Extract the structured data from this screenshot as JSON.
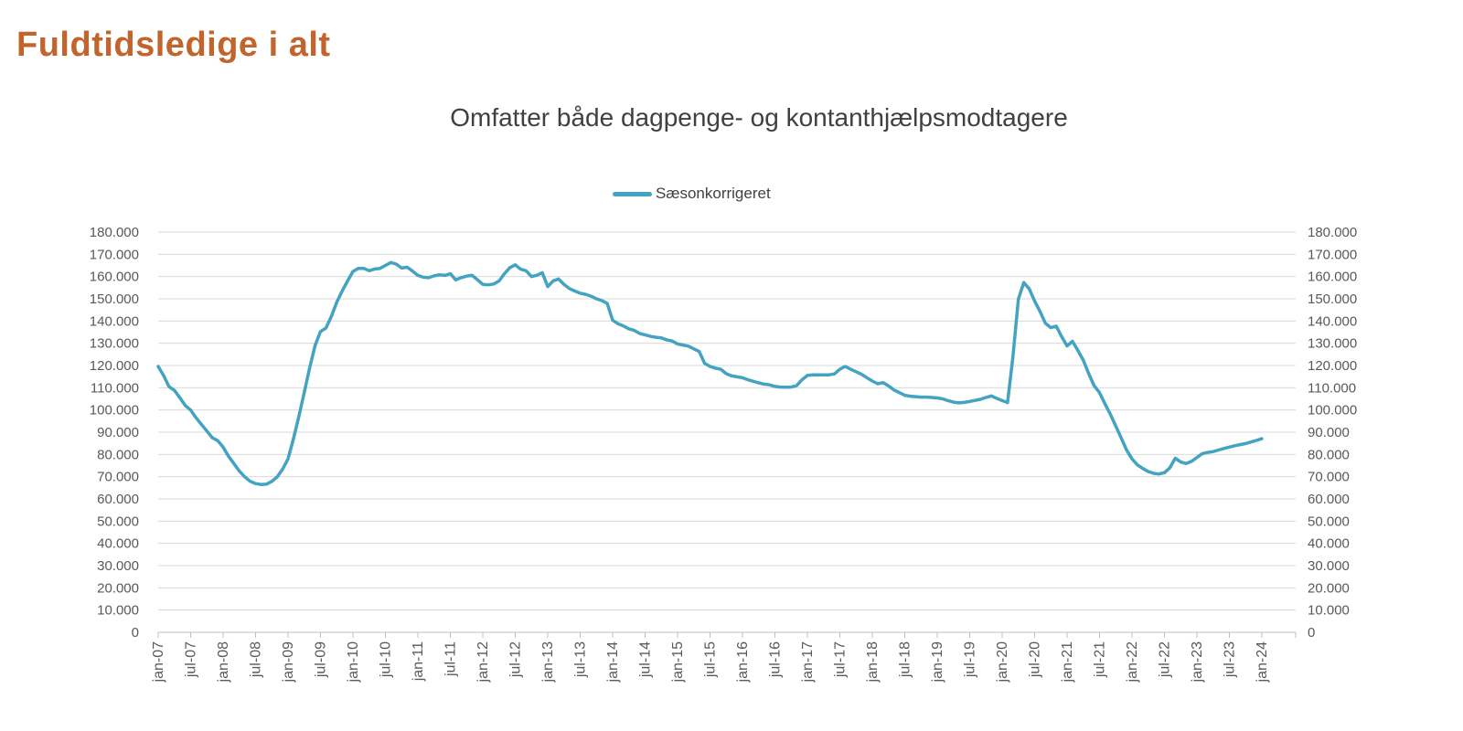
{
  "page": {
    "title": "Fuldtidsledige i alt"
  },
  "chart_data": {
    "type": "line",
    "title": "Omfatter både dagpenge- og kontanthjælpsmodtagere",
    "legend": {
      "position": "top",
      "entries": [
        "Sæsonkorrigeret"
      ]
    },
    "x": {
      "start": "jan-07",
      "end": "jan-24",
      "step": "month",
      "tick_labels": [
        "jan-07",
        "jul-07",
        "jan-08",
        "jul-08",
        "jan-09",
        "jul-09",
        "jan-10",
        "jul-10",
        "jan-11",
        "jul-11",
        "jan-12",
        "jul-12",
        "jan-13",
        "jul-13",
        "jan-14",
        "jul-14",
        "jan-15",
        "jul-15",
        "jan-16",
        "jul-16",
        "jan-17",
        "jul-17",
        "jan-18",
        "jul-18",
        "jan-19",
        "jul-19",
        "jan-20",
        "jul-20",
        "jan-21",
        "jul-21",
        "jan-22",
        "jul-22",
        "jan-23",
        "jul-23",
        "jan-24"
      ]
    },
    "y": {
      "min": 0,
      "max": 180000,
      "tick_step": 10000,
      "dual_axis": true,
      "tick_labels": [
        "0",
        "10.000",
        "20.000",
        "30.000",
        "40.000",
        "50.000",
        "60.000",
        "70.000",
        "80.000",
        "90.000",
        "100.000",
        "110.000",
        "120.000",
        "130.000",
        "140.000",
        "150.000",
        "160.000",
        "170.000",
        "180.000"
      ]
    },
    "grid": "horizontal",
    "series": [
      {
        "name": "Sæsonkorrigeret",
        "color": "#44A3C1",
        "values": [
          119600,
          115500,
          110500,
          108800,
          105500,
          102000,
          100000,
          96500,
          93500,
          90500,
          87500,
          86200,
          83300,
          79200,
          75900,
          72500,
          69900,
          67900,
          66900,
          66500,
          66600,
          67900,
          69900,
          73400,
          78000,
          87000,
          97000,
          108000,
          119000,
          129000,
          135300,
          136800,
          142000,
          148500,
          153500,
          158000,
          162300,
          163700,
          163700,
          162600,
          163400,
          163700,
          165000,
          166300,
          165600,
          163800,
          164200,
          162500,
          160500,
          159700,
          159500,
          160300,
          160800,
          160500,
          161300,
          158500,
          159500,
          160200,
          160600,
          158600,
          156500,
          156300,
          156600,
          158000,
          161300,
          164000,
          165300,
          163300,
          162600,
          160000,
          160600,
          161700,
          155500,
          158000,
          158900,
          156500,
          154600,
          153500,
          152500,
          152000,
          151200,
          150000,
          149200,
          147900,
          140400,
          138800,
          137800,
          136500,
          135800,
          134400,
          133800,
          133100,
          132700,
          132400,
          131500,
          131000,
          129700,
          129200,
          128700,
          127500,
          126300,
          121000,
          119600,
          118800,
          118300,
          116300,
          115300,
          114900,
          114500,
          113600,
          112900,
          112200,
          111600,
          111300,
          110600,
          110300,
          110200,
          110300,
          110900,
          113600,
          115500,
          115800,
          115800,
          115800,
          115800,
          116200,
          118300,
          119600,
          118300,
          117200,
          116000,
          114500,
          113000,
          111800,
          112300,
          110800,
          109000,
          107800,
          106600,
          106200,
          106000,
          105800,
          105800,
          105600,
          105400,
          105000,
          104200,
          103500,
          103200,
          103400,
          103800,
          104300,
          104800,
          105600,
          106300,
          105200,
          104200,
          103300,
          124000,
          150000,
          157300,
          154500,
          149000,
          144300,
          139000,
          137000,
          137700,
          133000,
          128800,
          130900,
          126800,
          122300,
          116300,
          110900,
          107800,
          102800,
          98100,
          92700,
          87400,
          82000,
          78000,
          75300,
          73700,
          72300,
          71500,
          71200,
          71800,
          74000,
          78300,
          76600,
          75900,
          76900,
          78600,
          80400,
          80900,
          81300,
          82000,
          82700,
          83300,
          83900,
          84400,
          84900,
          85600,
          86300,
          87100
        ]
      }
    ]
  },
  "colors": {
    "title": "#C1652D",
    "subtitle": "#404040",
    "axis_labels": "#595959",
    "gridline": "#D9D9D9",
    "axis_line": "#BFBFBF",
    "series": "#44A3C1",
    "background": "#FFFFFF"
  }
}
